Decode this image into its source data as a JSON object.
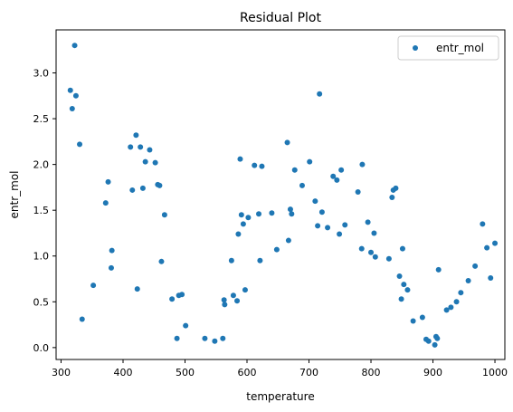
{
  "chart_data": {
    "type": "scatter",
    "title": "Residual Plot",
    "xlabel": "temperature",
    "ylabel": "entr_mol",
    "xlim": [
      292,
      1016
    ],
    "ylim": [
      -0.13,
      3.47
    ],
    "xticks": [
      300,
      400,
      500,
      600,
      700,
      800,
      900,
      1000
    ],
    "xtick_labels": [
      "300",
      "400",
      "500",
      "600",
      "700",
      "800",
      "900",
      "1000"
    ],
    "yticks": [
      0.0,
      0.5,
      1.0,
      1.5,
      2.0,
      2.5,
      3.0
    ],
    "ytick_labels": [
      "0.0",
      "0.5",
      "1.0",
      "1.5",
      "2.0",
      "2.5",
      "3.0"
    ],
    "grid": false,
    "legend_position": "top-right",
    "series": [
      {
        "name": "entr_mol",
        "color": "#1f77b4",
        "points": [
          [
            315,
            2.81
          ],
          [
            318,
            2.61
          ],
          [
            322,
            3.3
          ],
          [
            324,
            2.75
          ],
          [
            330,
            2.22
          ],
          [
            334,
            0.31
          ],
          [
            352,
            0.68
          ],
          [
            372,
            1.58
          ],
          [
            376,
            1.81
          ],
          [
            381,
            0.87
          ],
          [
            382,
            1.06
          ],
          [
            412,
            2.19
          ],
          [
            415,
            1.72
          ],
          [
            421,
            2.32
          ],
          [
            423,
            0.64
          ],
          [
            428,
            2.19
          ],
          [
            432,
            1.74
          ],
          [
            436,
            2.03
          ],
          [
            443,
            2.16
          ],
          [
            452,
            2.02
          ],
          [
            456,
            1.78
          ],
          [
            459,
            1.77
          ],
          [
            462,
            0.94
          ],
          [
            467,
            1.45
          ],
          [
            479,
            0.53
          ],
          [
            487,
            0.1
          ],
          [
            490,
            0.57
          ],
          [
            495,
            0.58
          ],
          [
            501,
            0.24
          ],
          [
            532,
            0.1
          ],
          [
            548,
            0.07
          ],
          [
            561,
            0.1
          ],
          [
            563,
            0.52
          ],
          [
            564,
            0.47
          ],
          [
            575,
            0.95
          ],
          [
            578,
            0.57
          ],
          [
            584,
            0.51
          ],
          [
            586,
            1.24
          ],
          [
            589,
            2.06
          ],
          [
            591,
            1.45
          ],
          [
            594,
            1.35
          ],
          [
            597,
            0.63
          ],
          [
            602,
            1.42
          ],
          [
            612,
            1.99
          ],
          [
            619,
            1.46
          ],
          [
            621,
            0.95
          ],
          [
            624,
            1.98
          ],
          [
            640,
            1.47
          ],
          [
            648,
            1.07
          ],
          [
            665,
            2.24
          ],
          [
            667,
            1.17
          ],
          [
            670,
            1.51
          ],
          [
            672,
            1.46
          ],
          [
            677,
            1.94
          ],
          [
            689,
            1.77
          ],
          [
            701,
            2.03
          ],
          [
            710,
            1.6
          ],
          [
            714,
            1.33
          ],
          [
            717,
            2.77
          ],
          [
            721,
            1.48
          ],
          [
            730,
            1.31
          ],
          [
            739,
            1.87
          ],
          [
            745,
            1.83
          ],
          [
            749,
            1.24
          ],
          [
            752,
            1.94
          ],
          [
            758,
            1.34
          ],
          [
            779,
            1.7
          ],
          [
            785,
            1.08
          ],
          [
            786,
            2.0
          ],
          [
            795,
            1.37
          ],
          [
            800,
            1.04
          ],
          [
            805,
            1.25
          ],
          [
            807,
            0.99
          ],
          [
            829,
            0.97
          ],
          [
            834,
            1.64
          ],
          [
            836,
            1.72
          ],
          [
            840,
            1.74
          ],
          [
            846,
            0.78
          ],
          [
            849,
            0.53
          ],
          [
            851,
            1.08
          ],
          [
            853,
            0.69
          ],
          [
            859,
            0.63
          ],
          [
            868,
            0.29
          ],
          [
            883,
            0.33
          ],
          [
            889,
            0.09
          ],
          [
            893,
            0.07
          ],
          [
            903,
            0.03
          ],
          [
            905,
            0.12
          ],
          [
            907,
            0.1
          ],
          [
            909,
            0.85
          ],
          [
            922,
            0.41
          ],
          [
            929,
            0.44
          ],
          [
            938,
            0.5
          ],
          [
            945,
            0.6
          ],
          [
            957,
            0.73
          ],
          [
            968,
            0.89
          ],
          [
            980,
            1.35
          ],
          [
            987,
            1.09
          ],
          [
            993,
            0.76
          ],
          [
            1000,
            1.14
          ]
        ]
      }
    ]
  }
}
